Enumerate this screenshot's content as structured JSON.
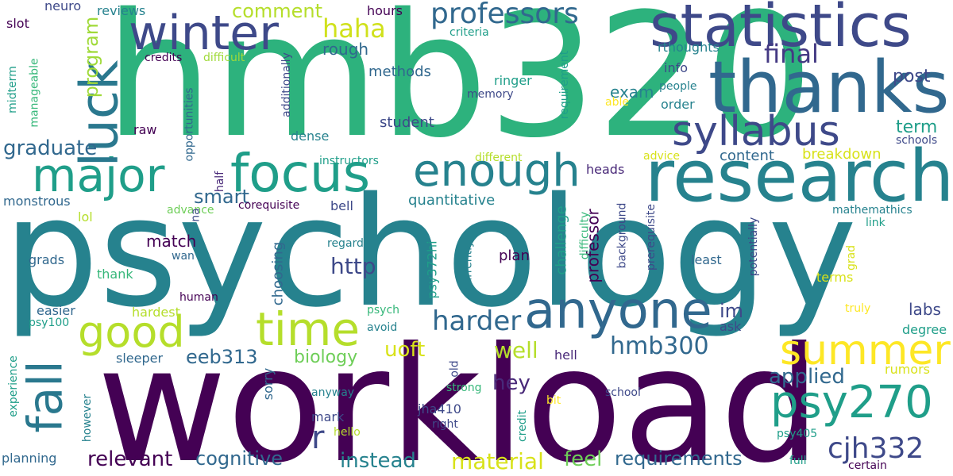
{
  "colors": {
    "background": "#ffffff",
    "palette": [
      "#440154",
      "#482878",
      "#3e4989",
      "#31688e",
      "#26828e",
      "#1f9e89",
      "#35b779",
      "#6ece58",
      "#b5de2b",
      "#fde725"
    ]
  },
  "words": [
    {
      "text": "psychology",
      "color": "#26828e"
    },
    {
      "text": "hmb320",
      "color": "#2db27d"
    },
    {
      "text": "workload",
      "color": "#440154"
    },
    {
      "text": "thanks",
      "color": "#31688e"
    },
    {
      "text": "research",
      "color": "#26828e"
    },
    {
      "text": "statistics",
      "color": "#3e4989"
    },
    {
      "text": "anyone",
      "color": "#31688e"
    },
    {
      "text": "syllabus",
      "color": "#3e4989"
    },
    {
      "text": "enough",
      "color": "#26828e"
    },
    {
      "text": "focus",
      "color": "#1f9e89"
    },
    {
      "text": "winter",
      "color": "#3e4989"
    },
    {
      "text": "major",
      "color": "#1f9e89"
    },
    {
      "text": "luck",
      "color": "#2a788e"
    },
    {
      "text": "fall",
      "color": "#2a788e"
    },
    {
      "text": "summer",
      "color": "#fde725"
    },
    {
      "text": "time",
      "color": "#b5de2b"
    },
    {
      "text": "good",
      "color": "#b5de2b"
    },
    {
      "text": "psy270",
      "color": "#1f9e89"
    },
    {
      "text": "professors",
      "color": "#31688e"
    },
    {
      "text": "cjh332",
      "color": "#3e4989"
    },
    {
      "text": "hmb300",
      "color": "#31688e"
    },
    {
      "text": "harder",
      "color": "#31688e"
    },
    {
      "text": "final",
      "color": "#443983"
    },
    {
      "text": "haha",
      "color": "#d0e11c"
    },
    {
      "text": "r",
      "color": "#3e4989"
    },
    {
      "text": "uoft",
      "color": "#d8e219"
    },
    {
      "text": "material",
      "color": "#d8e219"
    },
    {
      "text": "graduate",
      "color": "#31688e"
    },
    {
      "text": "program",
      "color": "#a0da39"
    },
    {
      "text": "applied",
      "color": "#31688e"
    },
    {
      "text": "well",
      "color": "#b5de2b"
    },
    {
      "text": "relevant",
      "color": "#440154"
    },
    {
      "text": "cognitive",
      "color": "#31688e"
    },
    {
      "text": "instead",
      "color": "#26828e"
    },
    {
      "text": "requirements",
      "color": "#31688e"
    },
    {
      "text": "feel",
      "color": "#6ece58"
    },
    {
      "text": "comment",
      "color": "#b5de2b"
    },
    {
      "text": "smart",
      "color": "#31688e"
    },
    {
      "text": "eeb313",
      "color": "#31688e"
    },
    {
      "text": "http",
      "color": "#3e4989"
    },
    {
      "text": "hey",
      "color": "#482878"
    },
    {
      "text": "im",
      "color": "#3e4989"
    },
    {
      "text": "rough",
      "color": "#31688e"
    },
    {
      "text": "post",
      "color": "#3e4989"
    },
    {
      "text": "term",
      "color": "#1f9e89"
    },
    {
      "text": "exam",
      "color": "#26828e"
    },
    {
      "text": "labs",
      "color": "#3e4989"
    },
    {
      "text": "biology",
      "color": "#6ece58"
    },
    {
      "text": "breakdown",
      "color": "#d8e219"
    },
    {
      "text": "match",
      "color": "#440154"
    },
    {
      "text": "professor",
      "color": "#440154"
    },
    {
      "text": "choosing",
      "color": "#31688e"
    },
    {
      "text": "challenge",
      "color": "#1f9e89"
    },
    {
      "text": "quantitative",
      "color": "#26828e"
    },
    {
      "text": "content",
      "color": "#31688e"
    },
    {
      "text": "methods",
      "color": "#31688e"
    },
    {
      "text": "student",
      "color": "#3e4989"
    },
    {
      "text": "rthoughts",
      "color": "#26828e"
    },
    {
      "text": "ringer",
      "color": "#1f9e89"
    },
    {
      "text": "info",
      "color": "#3e4989"
    },
    {
      "text": "order",
      "color": "#26828e"
    },
    {
      "text": "hours",
      "color": "#440154"
    },
    {
      "text": "neuro",
      "color": "#3e4989"
    },
    {
      "text": "reviews",
      "color": "#26828e"
    },
    {
      "text": "slot",
      "color": "#440154"
    },
    {
      "text": "criteria",
      "color": "#1f9e89"
    },
    {
      "text": "credits",
      "color": "#440154"
    },
    {
      "text": "difficult",
      "color": "#a0da39"
    },
    {
      "text": "raw",
      "color": "#440154"
    },
    {
      "text": "dense",
      "color": "#26828e"
    },
    {
      "text": "heads",
      "color": "#482878"
    },
    {
      "text": "monstrous",
      "color": "#31688e"
    },
    {
      "text": "lol",
      "color": "#b5de2b"
    },
    {
      "text": "advance",
      "color": "#6ece58"
    },
    {
      "text": "corequisite",
      "color": "#440154"
    },
    {
      "text": "bell",
      "color": "#3e4989"
    },
    {
      "text": "plan",
      "color": "#440154"
    },
    {
      "text": "grads",
      "color": "#31688e"
    },
    {
      "text": "wan",
      "color": "#31688e"
    },
    {
      "text": "thank",
      "color": "#35b779"
    },
    {
      "text": "human",
      "color": "#440154"
    },
    {
      "text": "hardest",
      "color": "#b5de2b"
    },
    {
      "text": "easier",
      "color": "#31688e"
    },
    {
      "text": "psy100",
      "color": "#1f9e89"
    },
    {
      "text": "psych",
      "color": "#35b779"
    },
    {
      "text": "avoid",
      "color": "#26828e"
    },
    {
      "text": "regards",
      "color": "#26828e"
    },
    {
      "text": "least",
      "color": "#31688e"
    },
    {
      "text": "terms",
      "color": "#d8e219"
    },
    {
      "text": "ask",
      "color": "#3e4989"
    },
    {
      "text": "truly",
      "color": "#fde725"
    },
    {
      "text": "degree",
      "color": "#1f9e89"
    },
    {
      "text": "rumors",
      "color": "#d8e219"
    },
    {
      "text": "hell",
      "color": "#482878"
    },
    {
      "text": "sleeper",
      "color": "#31688e"
    },
    {
      "text": "sorry",
      "color": "#31688e"
    },
    {
      "text": "strong",
      "color": "#35b779"
    },
    {
      "text": "anyway",
      "color": "#26828e"
    },
    {
      "text": "old",
      "color": "#3e4989"
    },
    {
      "text": "jha410",
      "color": "#3e4989"
    },
    {
      "text": "mark",
      "color": "#3e4989"
    },
    {
      "text": "right",
      "color": "#3e4989"
    },
    {
      "text": "hello",
      "color": "#b5de2b"
    },
    {
      "text": "bit",
      "color": "#fde725"
    },
    {
      "text": "school",
      "color": "#3e4989"
    },
    {
      "text": "credit",
      "color": "#1f9e89"
    },
    {
      "text": "psy405",
      "color": "#1f9e89"
    },
    {
      "text": "full",
      "color": "#1f9e89"
    },
    {
      "text": "certain",
      "color": "#440154"
    },
    {
      "text": "experience",
      "color": "#1f9e89"
    },
    {
      "text": "however",
      "color": "#26828e"
    },
    {
      "text": "planning",
      "color": "#31688e"
    },
    {
      "text": "link",
      "color": "#1f9e89"
    },
    {
      "text": "mathemathics",
      "color": "#26828e"
    },
    {
      "text": "grad",
      "color": "#d8e219"
    },
    {
      "text": "people",
      "color": "#26828e"
    },
    {
      "text": "able",
      "color": "#fde725"
    },
    {
      "text": "advice",
      "color": "#d8e219"
    },
    {
      "text": "schools",
      "color": "#3e4989"
    },
    {
      "text": "memory",
      "color": "#3e4989"
    },
    {
      "text": "requirement",
      "color": "#1f9e89"
    },
    {
      "text": "different",
      "color": "#b5de2b"
    },
    {
      "text": "instructors",
      "color": "#1f9e89"
    },
    {
      "text": "midterm",
      "color": "#1f9e89"
    },
    {
      "text": "manageable",
      "color": "#35b779"
    },
    {
      "text": "additionally",
      "color": "#3e4989"
    },
    {
      "text": "opportunities",
      "color": "#31688e"
    },
    {
      "text": "na",
      "color": "#3e4989"
    },
    {
      "text": "half",
      "color": "#482878"
    },
    {
      "text": "psy372hi",
      "color": "#1f9e89"
    },
    {
      "text": "currently",
      "color": "#26828e"
    },
    {
      "text": "difficulty",
      "color": "#35b779"
    },
    {
      "text": "background",
      "color": "#3e4989"
    },
    {
      "text": "prerequisite",
      "color": "#3e4989"
    },
    {
      "text": "potentially",
      "color": "#3e4989"
    }
  ]
}
